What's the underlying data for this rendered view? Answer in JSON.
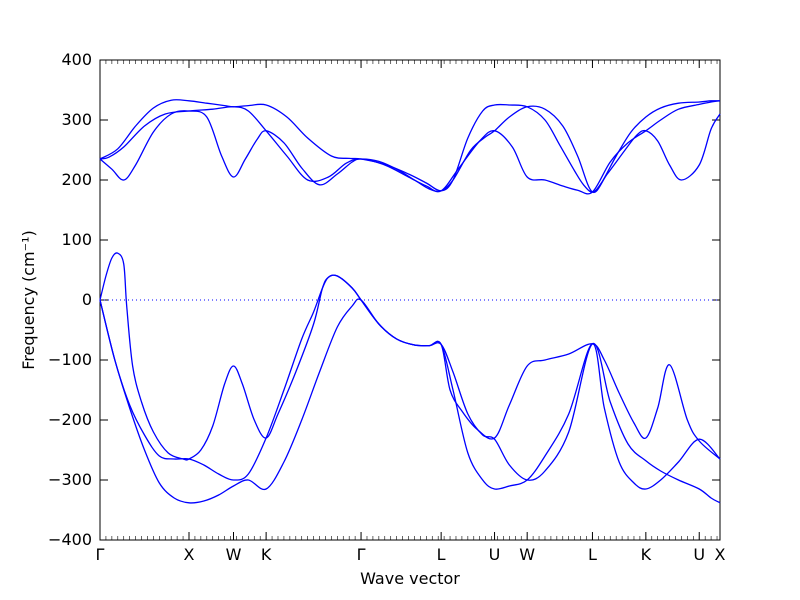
{
  "chart_data": {
    "type": "line",
    "xlabel": "Wave vector",
    "ylabel": "Frequency (cm⁻¹)",
    "ylim": [
      -400,
      400
    ],
    "yticks": [
      -400,
      -300,
      -200,
      -100,
      0,
      100,
      200,
      300,
      400
    ],
    "ytick_labels": [
      "−400",
      "−300",
      "−200",
      "−100",
      "0",
      "100",
      "200",
      "300",
      "400"
    ],
    "xlim": [
      0,
      20.9
    ],
    "xticks": [
      {
        "label": "Γ",
        "x": 0
      },
      {
        "label": "X",
        "x": 3.0
      },
      {
        "label": "W",
        "x": 4.5
      },
      {
        "label": "K",
        "x": 5.6
      },
      {
        "label": "Γ",
        "x": 8.8
      },
      {
        "label": "L",
        "x": 11.5
      },
      {
        "label": "U",
        "x": 13.3
      },
      {
        "label": "W",
        "x": 14.4
      },
      {
        "label": "L",
        "x": 16.6
      },
      {
        "label": "K",
        "x": 18.4
      },
      {
        "label": "U",
        "x": 20.2
      },
      {
        "label": "X",
        "x": 20.9
      }
    ],
    "zero_line": {
      "y": 0,
      "style": "dotted"
    },
    "line_color": "#0000ff",
    "series": [
      {
        "x": [
          0,
          0.3,
          0.8,
          1.5,
          2.2,
          3.0,
          3.8,
          4.5,
          5.0,
          5.6,
          6.3,
          7.0,
          7.7,
          8.3,
          8.8,
          9.6,
          10.4,
          11.0,
          11.5,
          12.1,
          12.8,
          13.3,
          13.9,
          14.4,
          15.0,
          15.6,
          16.1,
          16.6,
          17.2,
          17.8,
          18.4,
          18.9,
          19.5,
          20.2,
          20.6,
          20.9
        ],
        "y": [
          235,
          238,
          255,
          290,
          310,
          315,
          318,
          322,
          315,
          282,
          240,
          200,
          205,
          228,
          235,
          225,
          205,
          190,
          182,
          220,
          265,
          282,
          255,
          205,
          200,
          190,
          183,
          180,
          230,
          262,
          282,
          300,
          318,
          326,
          330,
          332
        ]
      },
      {
        "x": [
          0,
          0.4,
          0.8,
          1.2,
          1.8,
          2.4,
          3.0,
          3.6,
          4.1,
          4.5,
          4.9,
          5.3,
          5.6,
          6.2,
          6.8,
          7.4,
          8.0,
          8.5,
          8.8,
          9.4,
          10.0,
          10.6,
          11.1,
          11.5,
          11.9,
          12.5,
          13.0,
          13.3,
          13.8,
          14.4,
          15.0,
          15.6,
          16.1,
          16.6,
          17.1,
          17.7,
          18.1,
          18.4,
          18.8,
          19.2,
          19.6,
          20.2,
          20.6,
          20.9
        ],
        "y": [
          235,
          218,
          200,
          225,
          280,
          310,
          315,
          305,
          240,
          205,
          235,
          268,
          282,
          262,
          220,
          192,
          210,
          230,
          235,
          231,
          218,
          200,
          185,
          182,
          200,
          250,
          272,
          282,
          305,
          322,
          318,
          290,
          240,
          180,
          210,
          250,
          275,
          282,
          265,
          225,
          200,
          225,
          285,
          310
        ]
      },
      {
        "x": [
          0,
          0.6,
          1.2,
          1.8,
          2.4,
          3.0,
          3.6,
          4.2,
          4.5,
          5.0,
          5.6,
          6.3,
          7.0,
          7.8,
          8.4,
          8.8,
          9.6,
          10.4,
          11.0,
          11.5,
          11.9,
          12.4,
          12.9,
          13.3,
          13.8,
          14.4,
          15.0,
          15.5,
          16.0,
          16.3,
          16.6,
          16.9,
          17.4,
          17.9,
          18.4,
          18.9,
          19.5,
          20.2,
          20.6,
          20.9
        ],
        "y": [
          235,
          252,
          290,
          320,
          333,
          332,
          328,
          324,
          322,
          324,
          325,
          305,
          270,
          240,
          236,
          235,
          226,
          210,
          195,
          182,
          200,
          270,
          315,
          325,
          325,
          322,
          300,
          258,
          215,
          192,
          180,
          195,
          240,
          280,
          305,
          320,
          328,
          330,
          332,
          332
        ]
      },
      {
        "x": [
          0,
          0.2,
          0.4,
          0.6,
          0.8,
          0.9,
          1.1,
          1.4,
          1.8,
          2.3,
          2.8,
          3.0,
          3.4,
          3.8,
          4.2,
          4.5,
          4.8,
          5.2,
          5.6,
          6.0,
          6.6,
          7.2,
          7.5,
          7.7,
          8.0,
          8.5,
          8.8,
          9.4,
          10.0,
          10.6,
          11.1,
          11.5,
          11.8,
          12.2,
          12.7,
          13.3,
          13.8,
          14.4,
          15.0,
          15.8,
          16.6,
          17.0,
          17.5,
          18.0,
          18.4,
          18.8,
          19.2,
          19.8,
          20.2,
          20.9
        ],
        "y": [
          0,
          40,
          70,
          78,
          60,
          -10,
          -110,
          -170,
          -220,
          -255,
          -265,
          -265,
          -250,
          -210,
          -140,
          -110,
          -140,
          -200,
          -230,
          -190,
          -120,
          -40,
          20,
          38,
          40,
          20,
          0,
          -40,
          -65,
          -75,
          -76,
          -74,
          -150,
          -185,
          -215,
          -230,
          -175,
          -110,
          -100,
          -90,
          -73,
          -100,
          -155,
          -205,
          -230,
          -180,
          -108,
          -200,
          -235,
          -265
        ]
      },
      {
        "x": [
          0,
          0.5,
          1.0,
          1.5,
          2.0,
          2.5,
          3.0,
          3.5,
          4.0,
          4.5,
          5.0,
          5.6,
          6.2,
          6.8,
          7.2,
          7.5,
          7.7,
          8.0,
          8.5,
          8.8,
          9.4,
          10.0,
          10.6,
          11.1,
          11.5,
          11.9,
          12.4,
          12.9,
          13.3,
          13.8,
          14.4,
          15.0,
          15.8,
          16.6,
          17.0,
          17.5,
          18.0,
          18.4,
          18.9,
          19.5,
          20.2,
          20.9
        ],
        "y": [
          0,
          -100,
          -175,
          -225,
          -260,
          -265,
          -265,
          -275,
          -290,
          -300,
          -290,
          -230,
          -150,
          -65,
          -20,
          20,
          38,
          40,
          20,
          0,
          -40,
          -65,
          -75,
          -76,
          -74,
          -150,
          -255,
          -300,
          -315,
          -310,
          -300,
          -260,
          -190,
          -73,
          -180,
          -270,
          -305,
          -315,
          -300,
          -270,
          -232,
          -265
        ]
      },
      {
        "x": [
          0,
          0.5,
          1.0,
          1.5,
          2.0,
          2.5,
          3.0,
          3.5,
          4.0,
          4.5,
          5.0,
          5.6,
          6.2,
          6.8,
          7.4,
          8.0,
          8.5,
          8.8,
          9.4,
          10.0,
          10.6,
          11.1,
          11.5,
          11.9,
          12.4,
          12.9,
          13.3,
          13.8,
          14.4,
          15.0,
          15.8,
          16.6,
          17.2,
          17.8,
          18.4,
          18.9,
          19.5,
          20.2,
          20.6,
          20.9
        ],
        "y": [
          0,
          -100,
          -180,
          -250,
          -305,
          -330,
          -338,
          -335,
          -325,
          -310,
          -300,
          -315,
          -270,
          -200,
          -120,
          -45,
          -10,
          0,
          -40,
          -65,
          -75,
          -76,
          -74,
          -120,
          -190,
          -225,
          -232,
          -275,
          -300,
          -285,
          -220,
          -73,
          -170,
          -240,
          -268,
          -285,
          -300,
          -315,
          -330,
          -338
        ]
      }
    ]
  }
}
